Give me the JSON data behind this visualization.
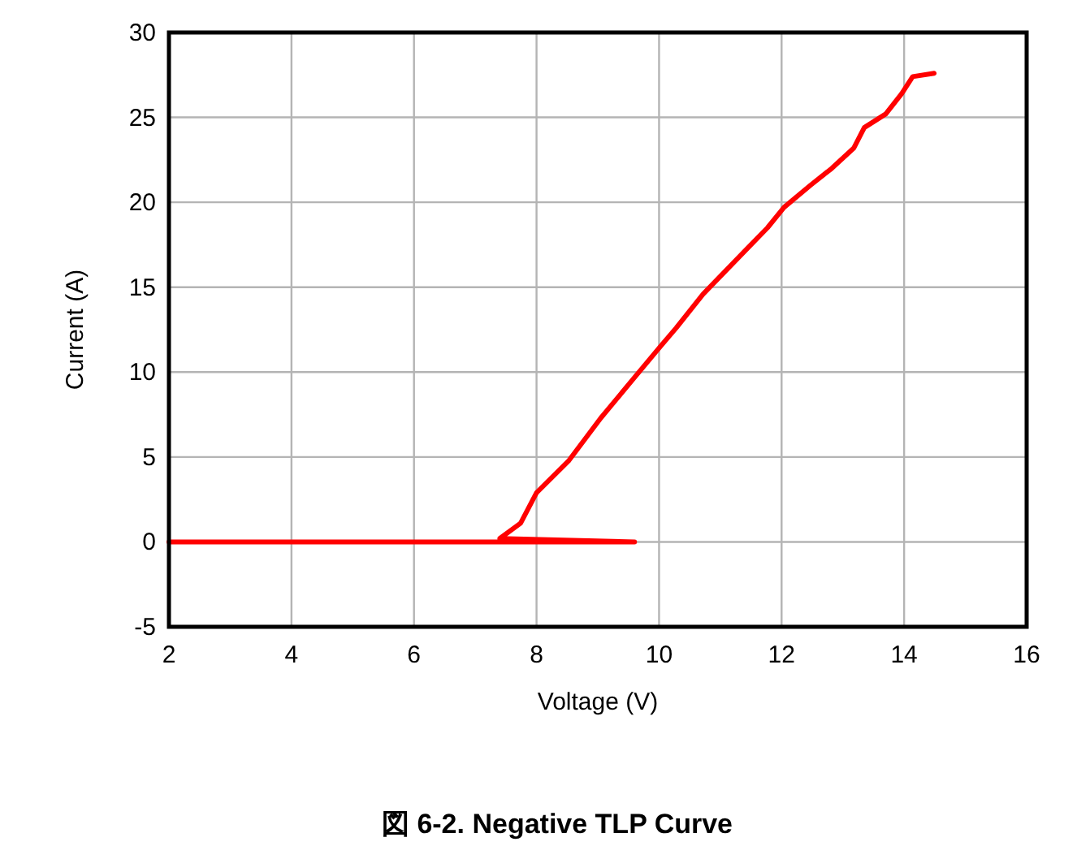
{
  "chart_data": {
    "type": "line",
    "title": "図 6-2. Negative TLP Curve",
    "xlabel": "Voltage (V)",
    "ylabel": "Current (A)",
    "xlim": [
      2,
      16
    ],
    "xticks": [
      2,
      4,
      6,
      8,
      10,
      12,
      14,
      16
    ],
    "ylim": [
      -5,
      30
    ],
    "yticks": [
      -5,
      0,
      5,
      10,
      15,
      20,
      25,
      30
    ],
    "grid": true,
    "line_style": "solid",
    "marker": "none",
    "series": [
      {
        "color": "#ff0000",
        "x": [
          2,
          4,
          6,
          8,
          9.6,
          7.4,
          7.74,
          8,
          8.53,
          9.05,
          9.58,
          10.02,
          10.28,
          10.72,
          11.07,
          11.42,
          11.77,
          12.04,
          12.47,
          12.82,
          13.18,
          13.35,
          13.7,
          13.96,
          14.14,
          14.49
        ],
        "values": [
          0,
          0,
          0,
          0,
          0,
          0.2,
          1.1,
          2.9,
          4.8,
          7.3,
          9.6,
          11.5,
          12.6,
          14.6,
          15.9,
          17.2,
          18.5,
          19.7,
          21,
          22,
          23.2,
          24.4,
          25.2,
          26.4,
          27.4,
          27.6
        ]
      }
    ]
  }
}
